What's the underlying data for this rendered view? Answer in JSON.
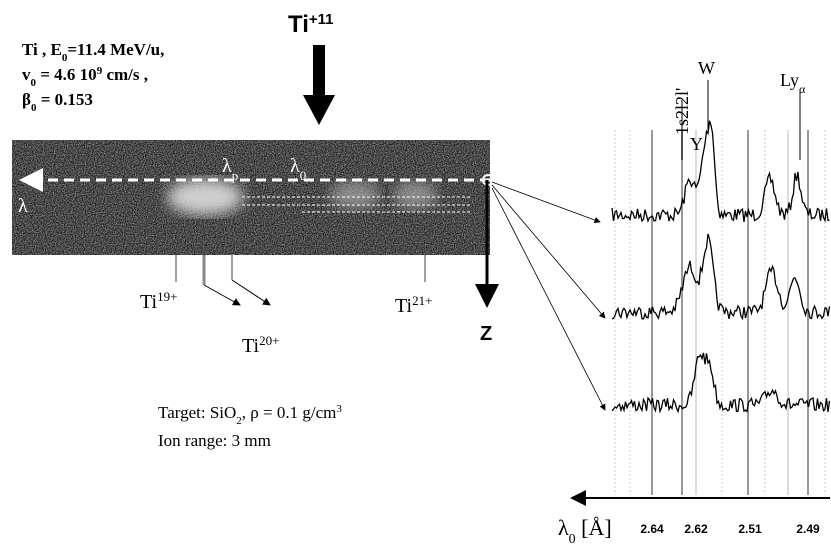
{
  "beam": {
    "ion": [
      "Ti",
      "+11"
    ],
    "line1": [
      "Ti , E",
      "0",
      "=11.4  MeV/u,"
    ],
    "line2": [
      "v",
      "0",
      " = 4.6 10",
      "9",
      " cm/s ,"
    ],
    "line3": [
      "β",
      "0",
      " = 0.153"
    ]
  },
  "target": {
    "lambda": "λ",
    "lambda_p": [
      "λ",
      "p"
    ],
    "lambda_0": [
      "λ",
      "0"
    ],
    "ions": [
      [
        "Ti",
        "19+"
      ],
      [
        "Ti",
        "20+"
      ],
      [
        "Ti",
        "21+"
      ]
    ],
    "z": "Z",
    "material": [
      "Target: SiO",
      "2",
      ",  ρ = 0.1 g/cm",
      "3"
    ],
    "range": "Ion range: 3 mm"
  },
  "spectrum": {
    "lines": [
      [
        "1s2l2l'"
      ],
      [
        "Y"
      ],
      [
        "W"
      ],
      [
        "Ly",
        "α"
      ]
    ],
    "axis": [
      "λ",
      "0",
      " [Å]"
    ],
    "ticks": [
      "2.64",
      "2.62",
      "2.51",
      "2.49"
    ]
  }
}
